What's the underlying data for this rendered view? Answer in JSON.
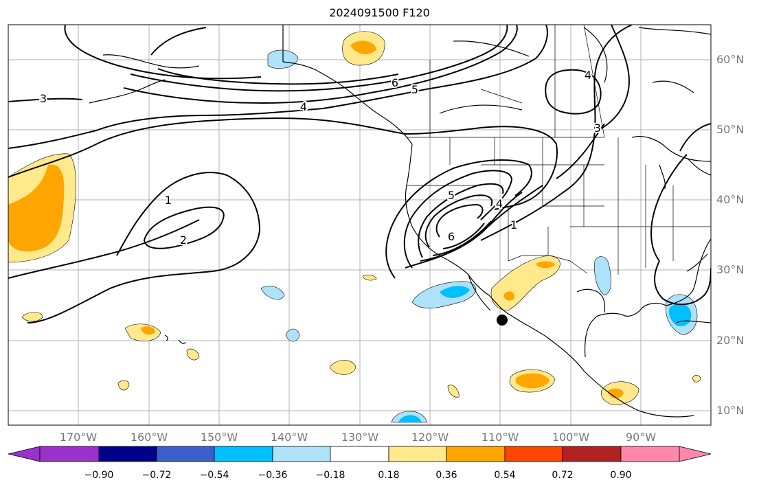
{
  "title": "2024091500 F120",
  "lat_labels": [
    "60°N",
    "50°N",
    "40°N",
    "30°N",
    "20°N",
    "10°N"
  ],
  "lon_labels": [
    "170°W",
    "160°W",
    "150°W",
    "140°W",
    "130°W",
    "120°W",
    "110°W",
    "100°W",
    "90°W"
  ],
  "contour_labels": [
    "3",
    "6",
    "5",
    "4",
    "4",
    "3",
    "1",
    "2",
    "5",
    "6",
    "4",
    "1"
  ],
  "colorbar": {
    "tick_labels": [
      "−0.90",
      "−0.72",
      "−0.54",
      "−0.36",
      "−0.18",
      "0.18",
      "0.36",
      "0.54",
      "0.72",
      "0.90"
    ],
    "colors": [
      "#9932cc",
      "#00008b",
      "#3a5fcd",
      "#00bfff",
      "#aee2fb",
      "#ffffff",
      "#ffe98c",
      "#ffa500",
      "#ff4500",
      "#b22222",
      "#ff88aa"
    ]
  },
  "colors": {
    "land_line": "#000000",
    "grid": "#b0b0b0",
    "contour": "#000000"
  }
}
